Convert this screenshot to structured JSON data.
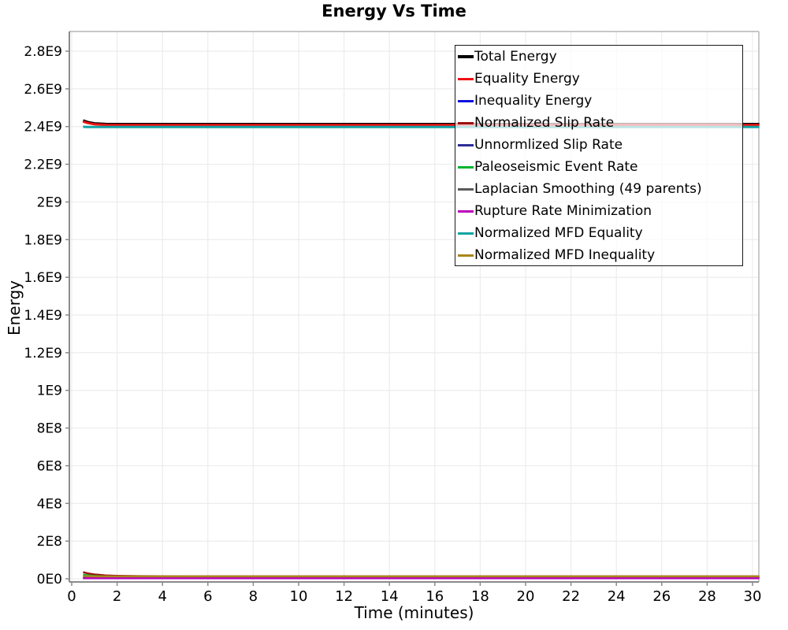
{
  "window": {
    "title": "Energy Vs Time"
  },
  "colors": {
    "background": "#ffffff",
    "grid": "#ececec",
    "axis": "#8a8a8a",
    "frame": "#b4b4b4",
    "tick_text": "#000000",
    "legend_border": "#1a1a1a"
  },
  "chart_data": {
    "type": "line",
    "title": "Energy Vs Time",
    "xlabel": "Time (minutes)",
    "ylabel": "Energy",
    "xlim": [
      0,
      30.3
    ],
    "ylim": [
      0,
      2900000000.0
    ],
    "grid": true,
    "legend_position": "upper-right-inside",
    "legend_background": "semi-transparent-white",
    "x_ticks": [
      0,
      2,
      4,
      6,
      8,
      10,
      12,
      14,
      16,
      18,
      20,
      22,
      24,
      26,
      28,
      30
    ],
    "y_tick_values": [
      0,
      200000000.0,
      400000000.0,
      600000000.0,
      800000000.0,
      1000000000.0,
      1200000000.0,
      1400000000.0,
      1600000000.0,
      1800000000.0,
      2000000000.0,
      2200000000.0,
      2400000000.0,
      2600000000.0,
      2800000000.0
    ],
    "y_tick_labels": [
      "0E0",
      "2E8",
      "4E8",
      "6E8",
      "8E8",
      "1E9",
      "1.2E9",
      "1.4E9",
      "1.6E9",
      "1.8E9",
      "2E9",
      "2.2E9",
      "2.4E9",
      "2.6E9",
      "2.8E9"
    ],
    "x": [
      0.5,
      0.7,
      1,
      1.5,
      2,
      3,
      5,
      8,
      12,
      16,
      20,
      24,
      28,
      30.3
    ],
    "series": [
      {
        "name": "Total Energy",
        "color": "#000000",
        "width": 3.5,
        "values": [
          2432000000.0,
          2423000000.0,
          2416000000.0,
          2413000000.0,
          2412000000.0,
          2412000000.0,
          2412000000.0,
          2412000000.0,
          2412000000.0,
          2412000000.0,
          2412000000.0,
          2412000000.0,
          2412000000.0,
          2412000000.0
        ]
      },
      {
        "name": "Equality Energy",
        "color": "#ee1111",
        "width": 3,
        "values": [
          2427000000.0,
          2419000000.0,
          2412000000.0,
          2409000000.0,
          2408000000.0,
          2408000000.0,
          2408000000.0,
          2408000000.0,
          2408000000.0,
          2408000000.0,
          2408000000.0,
          2408000000.0,
          2408000000.0,
          2408000000.0
        ]
      },
      {
        "name": "Inequality Energy",
        "color": "#1111dd",
        "width": 2.5,
        "values": [
          5000000.0,
          4000000.0,
          4000000.0,
          4000000.0,
          4000000.0,
          4000000.0,
          4000000.0,
          4000000.0,
          4000000.0,
          4000000.0,
          4000000.0,
          4000000.0,
          4000000.0,
          4000000.0
        ]
      },
      {
        "name": "Normalized Slip Rate",
        "color": "#9b1010",
        "width": 2.5,
        "values": [
          35000000.0,
          29000000.0,
          23000000.0,
          18000000.0,
          16000000.0,
          14000000.0,
          13000000.0,
          13000000.0,
          13000000.0,
          13000000.0,
          13000000.0,
          13000000.0,
          13000000.0,
          13000000.0
        ]
      },
      {
        "name": "Unnormlized Slip Rate",
        "color": "#2d2d96",
        "width": 2.5,
        "values": [
          9000000.0,
          8000000.0,
          7000000.0,
          6000000.0,
          6000000.0,
          6000000.0,
          6000000.0,
          6000000.0,
          6000000.0,
          6000000.0,
          6000000.0,
          6000000.0,
          6000000.0,
          6000000.0
        ]
      },
      {
        "name": "Paleoseismic Event Rate",
        "color": "#00b32c",
        "width": 2.5,
        "values": [
          22000000.0,
          18000000.0,
          15000000.0,
          12000000.0,
          11000000.0,
          10000000.0,
          9000000.0,
          9000000.0,
          9000000.0,
          9000000.0,
          9000000.0,
          9000000.0,
          9000000.0,
          9000000.0
        ]
      },
      {
        "name": "Laplacian Smoothing (49 parents)",
        "color": "#5a5a5a",
        "width": 2.5,
        "values": [
          6000000.0,
          5000000.0,
          5000000.0,
          5000000.0,
          5000000.0,
          5000000.0,
          5000000.0,
          5000000.0,
          5000000.0,
          5000000.0,
          5000000.0,
          5000000.0,
          5000000.0,
          5000000.0
        ]
      },
      {
        "name": "Rupture Rate Minimization",
        "color": "#bb00bb",
        "width": 2.5,
        "values": [
          3000000.0,
          3000000.0,
          3000000.0,
          3000000.0,
          3000000.0,
          3000000.0,
          3000000.0,
          3000000.0,
          3000000.0,
          3000000.0,
          3000000.0,
          3000000.0,
          3000000.0,
          3000000.0
        ]
      },
      {
        "name": "Normalized MFD Equality",
        "color": "#12a3a3",
        "width": 3,
        "values": [
          2399000000.0,
          2398000000.0,
          2398000000.0,
          2398000000.0,
          2398000000.0,
          2398000000.0,
          2398000000.0,
          2398000000.0,
          2398000000.0,
          2398000000.0,
          2398000000.0,
          2398000000.0,
          2398000000.0,
          2398000000.0
        ]
      },
      {
        "name": "Normalized MFD Inequality",
        "color": "#a8861a",
        "width": 2.5,
        "values": [
          15000000.0,
          14000000.0,
          13000000.0,
          13000000.0,
          13000000.0,
          13000000.0,
          13000000.0,
          13000000.0,
          13000000.0,
          13000000.0,
          13000000.0,
          13000000.0,
          13000000.0,
          13000000.0
        ]
      }
    ]
  }
}
